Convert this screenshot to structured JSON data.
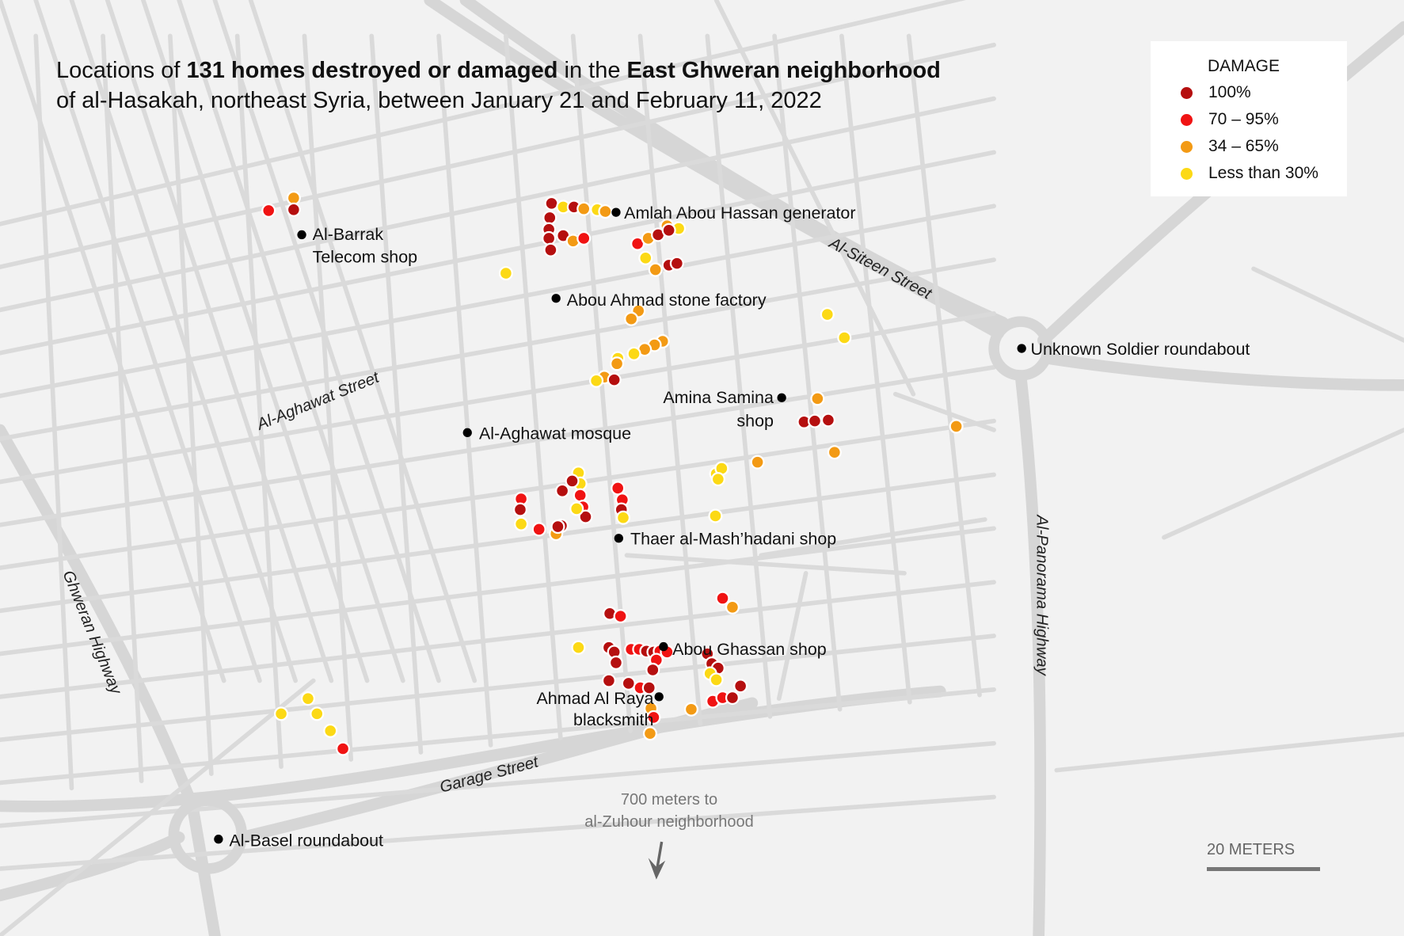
{
  "title": {
    "p1": "Locations of ",
    "b1": "131 homes destroyed or damaged",
    "p2": " in the ",
    "b2": "East Ghweran neighborhood",
    "line2": "of al-Hasakah, northeast Syria, between January 21 and February 11, 2022"
  },
  "legend": {
    "title": "DAMAGE",
    "items": [
      {
        "label": "100%",
        "color": "#b50f0f"
      },
      {
        "label": "70 – 95%",
        "color": "#f01313"
      },
      {
        "label": "34 – 65%",
        "color": "#f39a14"
      },
      {
        "label": "Less than 30%",
        "color": "#fcd915"
      }
    ]
  },
  "landmarks": [
    {
      "name": "Amlah Abou Hassan generator"
    },
    {
      "name1": "Al-Barrak",
      "name2": "Telecom shop"
    },
    {
      "name": "Abou Ahmad stone factory"
    },
    {
      "name": "Unknown Soldier roundabout"
    },
    {
      "name1": "Amina Samina",
      "name2": "shop"
    },
    {
      "name": "Al-Aghawat mosque"
    },
    {
      "name": "Thaer al-Mash’hadani shop"
    },
    {
      "name": "Abou Ghassan shop"
    },
    {
      "name1": "Ahmad Al Raya",
      "name2": "blacksmith"
    },
    {
      "name": "Al-Basel roundabout"
    }
  ],
  "streets": [
    "Al-Siteen Street",
    "Al-Aghawat Street",
    "Ghweran Highway",
    "Al-Panorama Highway",
    "Garage Street"
  ],
  "note": {
    "line1": "700 meters to",
    "line2": "al-Zuhour neighborhood",
    "icon": "arrow-down-icon"
  },
  "scale": {
    "label": "20 METERS"
  },
  "colors": {
    "background": "#f2f2f2",
    "road": "#dadada"
  }
}
